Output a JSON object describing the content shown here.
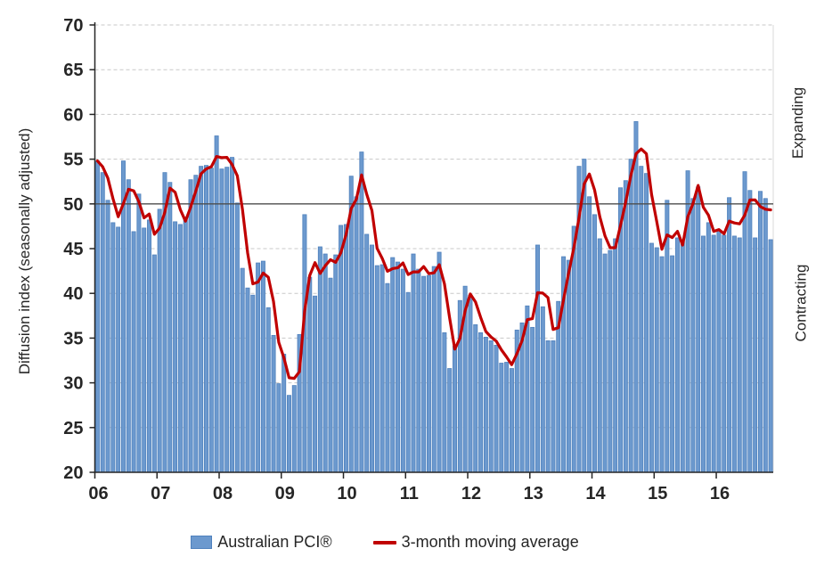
{
  "chart_data": {
    "type": "bar",
    "title": "",
    "ylabel": "Diffusion index (seasonally adjusted)",
    "ylim": [
      20,
      70
    ],
    "y_ticks": [
      20,
      25,
      30,
      35,
      40,
      45,
      50,
      55,
      60,
      65,
      70
    ],
    "x_year_labels": [
      "06",
      "07",
      "08",
      "09",
      "10",
      "11",
      "12",
      "13",
      "14",
      "15",
      "16"
    ],
    "months_per_year_label": 12,
    "start_period": "2006-01",
    "end_period": "2016-11",
    "reference_line": 50,
    "grid": "dashed horizontal gridlines, solid line at 50",
    "legend_position": "bottom",
    "series": [
      {
        "name": "Australian PCI®",
        "type": "bar",
        "values": [
          54.8,
          53.5,
          50.4,
          47.9,
          47.4,
          54.8,
          52.7,
          46.9,
          51.1,
          47.3,
          48.2,
          44.3,
          49.4,
          53.5,
          52.4,
          48.0,
          47.7,
          48.5,
          52.7,
          53.2,
          54.2,
          54.3,
          54.0,
          57.6,
          53.9,
          54.1,
          55.2,
          50.1,
          42.8,
          40.6,
          39.8,
          43.4,
          43.6,
          38.4,
          35.3,
          29.9,
          33.2,
          28.6,
          29.7,
          35.4,
          48.8,
          41.8,
          39.7,
          45.2,
          44.4,
          41.7,
          44.3,
          47.6,
          47.7,
          53.1,
          50.8,
          55.8,
          46.6,
          45.4,
          43.1,
          43.2,
          41.1,
          44.0,
          43.5,
          42.7,
          40.1,
          44.4,
          42.7,
          41.9,
          42.0,
          43.0,
          44.6,
          35.6,
          31.6,
          34.1,
          39.2,
          40.8,
          39.8,
          36.5,
          35.6,
          35.1,
          34.7,
          34.2,
          32.2,
          32.3,
          31.6,
          35.9,
          36.7,
          38.6,
          36.2,
          45.4,
          38.5,
          34.7,
          34.7,
          39.1,
          44.1,
          43.7,
          47.5,
          54.2,
          55.0,
          50.8,
          48.8,
          46.1,
          44.4,
          44.8,
          46.1,
          51.8,
          52.6,
          55.0,
          59.2,
          54.2,
          53.4,
          45.6,
          45.1,
          44.1,
          50.4,
          44.2,
          46.2,
          45.8,
          53.7,
          50.6,
          51.9,
          46.4,
          47.9,
          46.5,
          47.0,
          46.5,
          50.7,
          46.4,
          46.2,
          53.6,
          51.5,
          46.2,
          51.4,
          50.6,
          46.0
        ]
      },
      {
        "name": "3-month moving average",
        "type": "line",
        "window": 3,
        "derived_from": "Australian PCI®"
      }
    ],
    "annotations": {
      "above_50": "Expanding",
      "below_50": "Contracting"
    }
  },
  "labels": {
    "y_axis_title": "Diffusion index (seasonally adjusted)",
    "expanding": "Expanding",
    "contracting": "Contracting"
  },
  "legend": {
    "bar_label": "Australian PCI®",
    "line_label": "3-month moving average"
  },
  "colors": {
    "bar_fill": "#6C99CE",
    "bar_border": "#4F81BD",
    "ma_line": "#C00000",
    "gridline": "#C8C8C8",
    "reference_line": "#4D4D4D",
    "axis": "#262626",
    "plot_right_border": "#D9D9D9"
  }
}
